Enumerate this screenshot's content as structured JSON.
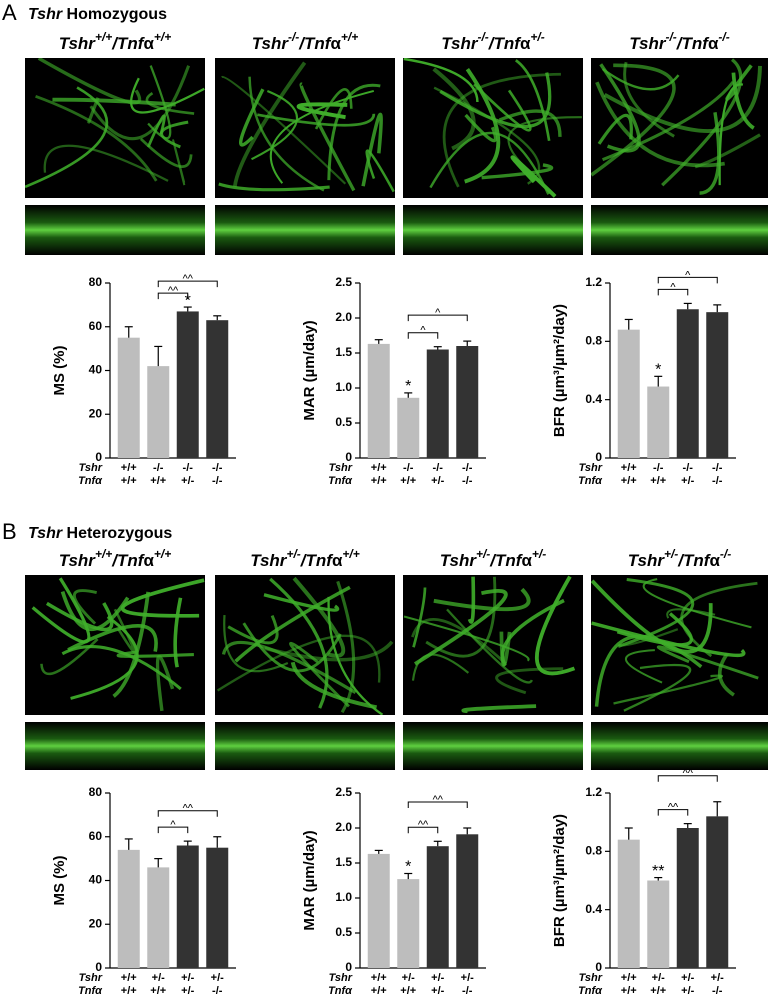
{
  "panels": [
    {
      "label": "A",
      "title": [
        "Tshr",
        " Homozygous"
      ],
      "columns": [
        [
          "Tshr",
          "+/+",
          "/",
          "Tnf",
          "α",
          "+/+"
        ],
        [
          "Tshr",
          "-/-",
          "/",
          "Tnf",
          "α",
          "+/+"
        ],
        [
          "Tshr",
          "-/-",
          "/",
          "Tnf",
          "α",
          "+/-"
        ],
        [
          "Tshr",
          "-/-",
          "/",
          "Tnf",
          "α",
          "-/-"
        ]
      ]
    },
    {
      "label": "B",
      "title": [
        "Tshr",
        " Heterozygous"
      ],
      "columns": [
        [
          "Tshr",
          "+/+",
          "/",
          "Tnf",
          "α",
          "+/+"
        ],
        [
          "Tshr",
          "+/-",
          "/",
          "Tnf",
          "α",
          "+/+"
        ],
        [
          "Tshr",
          "+/-",
          "/",
          "Tnf",
          "α",
          "+/-"
        ],
        [
          "Tshr",
          "+/-",
          "/",
          "Tnf",
          "α",
          "-/-"
        ]
      ]
    }
  ],
  "chart_data": [
    {
      "type": "bar",
      "ylabel": "MS (%)",
      "ylim": [
        0,
        80
      ],
      "yticks": [
        0,
        20,
        40,
        60,
        80
      ],
      "category_rows": [
        {
          "name": "Tshr",
          "labels": [
            "+/+",
            "-/-",
            "-/-",
            "-/-"
          ]
        },
        {
          "name": "Tnfα",
          "labels": [
            "+/+",
            "+/+",
            "+/-",
            "-/-"
          ]
        }
      ],
      "values": [
        55,
        42,
        67,
        63
      ],
      "errors": [
        5,
        9,
        2,
        2
      ],
      "colors": [
        "#bdbdbd",
        "#bdbdbd",
        "#333333",
        "#333333"
      ],
      "markers": [
        {
          "index": 2,
          "text": "*"
        }
      ],
      "comparisons": [
        {
          "from": 1,
          "to": 2,
          "text": "^^"
        },
        {
          "from": 1,
          "to": 3,
          "text": "^^"
        }
      ]
    },
    {
      "type": "bar",
      "ylabel": "MAR  (µm/day)",
      "ylim": [
        0,
        2.5
      ],
      "yticks": [
        0,
        0.5,
        {
          "value": 1,
          "label": "1.0"
        },
        1.5,
        {
          "value": 2,
          "label": "2.0"
        },
        2.5
      ],
      "category_rows": [
        {
          "name": "Tshr",
          "labels": [
            "+/+",
            "-/-",
            "-/-",
            "-/-"
          ]
        },
        {
          "name": "Tnfα",
          "labels": [
            "+/+",
            "+/+",
            "+/-",
            "-/-"
          ]
        }
      ],
      "values": [
        1.63,
        0.86,
        1.55,
        1.6
      ],
      "errors": [
        0.06,
        0.07,
        0.04,
        0.07
      ],
      "colors": [
        "#bdbdbd",
        "#bdbdbd",
        "#333333",
        "#333333"
      ],
      "markers": [
        {
          "index": 1,
          "text": "*"
        }
      ],
      "comparisons": [
        {
          "from": 1,
          "to": 2,
          "text": "^"
        },
        {
          "from": 1,
          "to": 3,
          "text": "^"
        }
      ]
    },
    {
      "type": "bar",
      "ylabel": "BFR (µm³/µm²/day)",
      "ylim": [
        0,
        1.2
      ],
      "yticks": [
        0,
        0.4,
        0.8,
        1.2
      ],
      "category_rows": [
        {
          "name": "Tshr",
          "labels": [
            "+/+",
            "-/-",
            "-/-",
            "-/-"
          ]
        },
        {
          "name": "Tnfα",
          "labels": [
            "+/+",
            "+/+",
            "+/-",
            "-/-"
          ]
        }
      ],
      "values": [
        0.88,
        0.49,
        1.02,
        1.0
      ],
      "errors": [
        0.07,
        0.07,
        0.04,
        0.05
      ],
      "colors": [
        "#bdbdbd",
        "#bdbdbd",
        "#333333",
        "#333333"
      ],
      "markers": [
        {
          "index": 1,
          "text": "*"
        }
      ],
      "comparisons": [
        {
          "from": 1,
          "to": 2,
          "text": "^"
        },
        {
          "from": 1,
          "to": 3,
          "text": "^"
        }
      ]
    },
    {
      "type": "bar",
      "ylabel": "MS (%)",
      "ylim": [
        0,
        80
      ],
      "yticks": [
        0,
        20,
        40,
        60,
        80
      ],
      "category_rows": [
        {
          "name": "Tshr",
          "labels": [
            "+/+",
            "+/-",
            "+/-",
            "+/-"
          ]
        },
        {
          "name": "Tnfα",
          "labels": [
            "+/+",
            "+/+",
            "+/-",
            "-/-"
          ]
        }
      ],
      "values": [
        54,
        46,
        56,
        55
      ],
      "errors": [
        5,
        4,
        2,
        5
      ],
      "colors": [
        "#bdbdbd",
        "#bdbdbd",
        "#333333",
        "#333333"
      ],
      "markers": [],
      "comparisons": [
        {
          "from": 1,
          "to": 2,
          "text": "^"
        },
        {
          "from": 1,
          "to": 3,
          "text": "^^"
        }
      ]
    },
    {
      "type": "bar",
      "ylabel": "MAR  (µm/day)",
      "ylim": [
        0,
        2.5
      ],
      "yticks": [
        0,
        0.5,
        {
          "value": 1,
          "label": "1.0"
        },
        1.5,
        {
          "value": 2,
          "label": "2.0"
        },
        2.5
      ],
      "category_rows": [
        {
          "name": "Tshr",
          "labels": [
            "+/+",
            "+/-",
            "+/-",
            "+/-"
          ]
        },
        {
          "name": "Tnfα",
          "labels": [
            "+/+",
            "+/+",
            "+/-",
            "-/-"
          ]
        }
      ],
      "values": [
        1.63,
        1.27,
        1.74,
        1.91
      ],
      "errors": [
        0.05,
        0.08,
        0.07,
        0.09
      ],
      "colors": [
        "#bdbdbd",
        "#bdbdbd",
        "#333333",
        "#333333"
      ],
      "markers": [
        {
          "index": 1,
          "text": "*"
        }
      ],
      "comparisons": [
        {
          "from": 1,
          "to": 2,
          "text": "^^"
        },
        {
          "from": 1,
          "to": 3,
          "text": "^^"
        }
      ]
    },
    {
      "type": "bar",
      "ylabel": "BFR (µm³/µm²/day)",
      "ylim": [
        0,
        1.2
      ],
      "yticks": [
        0,
        0.4,
        0.8,
        1.2
      ],
      "category_rows": [
        {
          "name": "Tshr",
          "labels": [
            "+/+",
            "+/-",
            "+/-",
            "+/-"
          ]
        },
        {
          "name": "Tnfα",
          "labels": [
            "+/+",
            "+/+",
            "+/-",
            "-/-"
          ]
        }
      ],
      "values": [
        0.88,
        0.6,
        0.96,
        1.04
      ],
      "errors": [
        0.08,
        0.02,
        0.03,
        0.1
      ],
      "colors": [
        "#bdbdbd",
        "#bdbdbd",
        "#333333",
        "#333333"
      ],
      "markers": [
        {
          "index": 1,
          "text": "**"
        }
      ],
      "comparisons": [
        {
          "from": 1,
          "to": 2,
          "text": "^^"
        },
        {
          "from": 1,
          "to": 3,
          "text": "^^"
        }
      ]
    }
  ]
}
